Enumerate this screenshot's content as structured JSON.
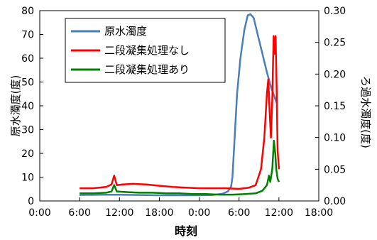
{
  "chart_data": {
    "type": "line",
    "title": "",
    "xlabel": "時刻",
    "ylabel_left": "原水濁度(度)",
    "ylabel_right": "ろ過水濁度(度)",
    "x_ticks": [
      "0:00",
      "6:00",
      "12:00",
      "18:00",
      "0:00",
      "6:00",
      "12:00",
      "18:00"
    ],
    "xlim_hours": [
      0,
      42
    ],
    "ylim_left": [
      0,
      80
    ],
    "y_ticks_left": [
      "0",
      "10",
      "20",
      "30",
      "40",
      "50",
      "60",
      "70",
      "80"
    ],
    "ylim_right": [
      0,
      0.3
    ],
    "y_ticks_right": [
      "0.00",
      "0.05",
      "0.10",
      "0.15",
      "0.20",
      "0.25",
      "0.30"
    ],
    "grid": false,
    "legend_position": "top-left",
    "series": [
      {
        "name": "原水濁度",
        "axis": "left",
        "color": "#4a7ebb",
        "points": [
          [
            6,
            2.5
          ],
          [
            9,
            2.6
          ],
          [
            12,
            2.6
          ],
          [
            15,
            2.5
          ],
          [
            18,
            2.4
          ],
          [
            21,
            2.4
          ],
          [
            24,
            2.4
          ],
          [
            26,
            2.5
          ],
          [
            27.5,
            3
          ],
          [
            28.3,
            4
          ],
          [
            28.8,
            6
          ],
          [
            29,
            10
          ],
          [
            29.3,
            25
          ],
          [
            29.7,
            45
          ],
          [
            30.2,
            60
          ],
          [
            30.8,
            72
          ],
          [
            31.3,
            78
          ],
          [
            31.7,
            78.5
          ],
          [
            32.2,
            77
          ],
          [
            32.8,
            70
          ],
          [
            33.5,
            62
          ],
          [
            34.2,
            54
          ],
          [
            34.8,
            48
          ],
          [
            35.3,
            44
          ],
          [
            35.7,
            41
          ]
        ]
      },
      {
        "name": "二段凝集処理なし",
        "axis": "right",
        "color": "#ff0000",
        "points": [
          [
            6,
            0.02
          ],
          [
            8,
            0.02
          ],
          [
            10,
            0.022
          ],
          [
            10.8,
            0.026
          ],
          [
            11.2,
            0.04
          ],
          [
            11.6,
            0.025
          ],
          [
            12.5,
            0.026
          ],
          [
            14,
            0.027
          ],
          [
            16,
            0.026
          ],
          [
            18,
            0.024
          ],
          [
            20,
            0.022
          ],
          [
            22,
            0.021
          ],
          [
            24,
            0.02
          ],
          [
            26,
            0.02
          ],
          [
            28,
            0.02
          ],
          [
            30,
            0.019
          ],
          [
            31.5,
            0.021
          ],
          [
            32.5,
            0.025
          ],
          [
            33.3,
            0.05
          ],
          [
            33.8,
            0.1
          ],
          [
            34.2,
            0.17
          ],
          [
            34.4,
            0.192
          ],
          [
            34.6,
            0.14
          ],
          [
            34.8,
            0.1
          ],
          [
            35,
            0.16
          ],
          [
            35.2,
            0.26
          ],
          [
            35.35,
            0.232
          ],
          [
            35.5,
            0.26
          ],
          [
            35.65,
            0.18
          ],
          [
            35.8,
            0.08
          ],
          [
            36,
            0.05
          ]
        ]
      },
      {
        "name": "二段凝集処理あり",
        "axis": "right",
        "color": "#008000",
        "points": [
          [
            6,
            0.012
          ],
          [
            8,
            0.012
          ],
          [
            10,
            0.013
          ],
          [
            10.8,
            0.015
          ],
          [
            11.2,
            0.025
          ],
          [
            11.6,
            0.015
          ],
          [
            13,
            0.014
          ],
          [
            15,
            0.013
          ],
          [
            17,
            0.013
          ],
          [
            19,
            0.012
          ],
          [
            21,
            0.012
          ],
          [
            23,
            0.011
          ],
          [
            25,
            0.011
          ],
          [
            27,
            0.01
          ],
          [
            29,
            0.01
          ],
          [
            31,
            0.011
          ],
          [
            32.5,
            0.012
          ],
          [
            33.5,
            0.016
          ],
          [
            34.2,
            0.025
          ],
          [
            34.5,
            0.04
          ],
          [
            34.7,
            0.03
          ],
          [
            35,
            0.05
          ],
          [
            35.25,
            0.095
          ],
          [
            35.45,
            0.075
          ],
          [
            35.6,
            0.05
          ],
          [
            35.8,
            0.035
          ],
          [
            36,
            0.03
          ]
        ]
      }
    ]
  }
}
